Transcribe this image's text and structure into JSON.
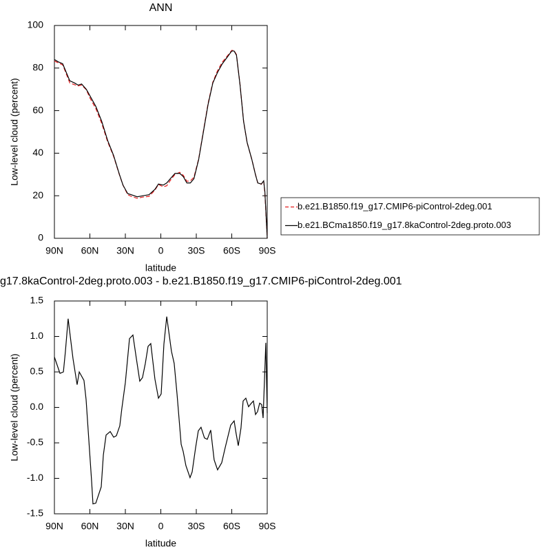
{
  "chart_data": [
    {
      "type": "line",
      "title": "ANN",
      "xlabel": "latitude",
      "ylabel": "Low-level cloud (percent)",
      "x": [
        90,
        87,
        83,
        80,
        77,
        73,
        70,
        67,
        63,
        60,
        55,
        50,
        45,
        40,
        35,
        32,
        28,
        25,
        20,
        15,
        10,
        5,
        2,
        -2,
        -5,
        -8,
        -12,
        -16,
        -19,
        -22,
        -25,
        -28,
        -32,
        -36,
        -40,
        -44,
        -48,
        -52,
        -56,
        -60,
        -62,
        -64,
        -67,
        -70,
        -73,
        -77,
        -80,
        -82,
        -85,
        -87,
        -88,
        -90
      ],
      "series": [
        {
          "name": "b.e21.B1850.f19_g17.CMIP6-piControl-2deg.001",
          "color": "#e41a1c",
          "dashed": true,
          "values": [
            83.3,
            82.5,
            81.5,
            77.3,
            73,
            72.2,
            71.6,
            72,
            69.8,
            66,
            61,
            54,
            45.4,
            38.6,
            29.8,
            25,
            20.5,
            19.7,
            18.8,
            19.4,
            19.7,
            22.6,
            25.3,
            24.2,
            24.7,
            27.2,
            30,
            31,
            29.6,
            26.8,
            27,
            28.7,
            37.3,
            50.4,
            63.5,
            73.4,
            78.8,
            82.8,
            85.5,
            88.3,
            88.2,
            86.3,
            72.3,
            54.9,
            44.9,
            37,
            30.1,
            26,
            25.4,
            27.1,
            21,
            0
          ]
        },
        {
          "name": "b.e21.BCma1850.f19_g17.8kaControl-2deg.proto.003",
          "color": "#000000",
          "dashed": false,
          "values": [
            84,
            83,
            82,
            78,
            74,
            73,
            72,
            72.5,
            70,
            67,
            62,
            55,
            46,
            39,
            30,
            25,
            21,
            20.5,
            19.5,
            20,
            20.5,
            23,
            25.5,
            25,
            26,
            28,
            30.5,
            30.5,
            29,
            26,
            26,
            28,
            37,
            50,
            63,
            73,
            78,
            82,
            85,
            88,
            88,
            86,
            72,
            55,
            45,
            37,
            30,
            26,
            25.5,
            27,
            22,
            0
          ]
        }
      ],
      "xlim": [
        90,
        -90
      ],
      "xticks": [
        {
          "value": 90,
          "label": "90N"
        },
        {
          "value": 60,
          "label": "60N"
        },
        {
          "value": 30,
          "label": "30N"
        },
        0,
        {
          "value": -30,
          "label": "30S"
        },
        {
          "value": -60,
          "label": "60S"
        },
        {
          "value": -90,
          "label": "90S"
        }
      ],
      "ylim": [
        0,
        100
      ],
      "yticks": [
        0,
        20,
        40,
        60,
        80,
        100
      ],
      "legend": "right"
    },
    {
      "type": "line",
      "title": "g17.8kaControl-2deg.proto.003 - b.e21.B1850.f19_g17.CMIP6-piControl-2deg.001",
      "xlabel": "latitude",
      "ylabel": "Low-level cloud (percent)",
      "x": [
        90,
        85.3,
        82.4,
        80.7,
        78.4,
        74.3,
        70.8,
        69,
        65,
        63.2,
        58.5,
        57.4,
        55,
        50.4,
        48.6,
        46.3,
        42.8,
        39.9,
        37.6,
        34.7,
        33,
        30,
        26.5,
        23.6,
        20.7,
        17.8,
        15.5,
        13.1,
        10.8,
        8.5,
        5,
        2,
        -0.3,
        -2.6,
        -5,
        -9,
        -11.3,
        -13.7,
        -17.2,
        -18.9,
        -21.2,
        -24.7,
        -26.5,
        -29.4,
        -31.7,
        -34,
        -36.9,
        -39.3,
        -42.2,
        -45.1,
        -48,
        -51.5,
        -54.4,
        -59.1,
        -62,
        -63.7,
        -65.5,
        -67.8,
        -69.6,
        -71.9,
        -74.2,
        -76.6,
        -78.3,
        -80.1,
        -81.8,
        -83.6,
        -85.3,
        -86.5,
        -88.8,
        -90
      ],
      "series": [
        {
          "color": "#000000",
          "dashed": false,
          "values": [
            0.71,
            0.48,
            0.5,
            0.79,
            1.25,
            0.69,
            0.32,
            0.5,
            0.38,
            0.11,
            -1.05,
            -1.36,
            -1.35,
            -1.12,
            -0.67,
            -0.39,
            -0.34,
            -0.42,
            -0.4,
            -0.26,
            -0.02,
            0.35,
            0.97,
            1.02,
            0.69,
            0.37,
            0.42,
            0.62,
            0.86,
            0.9,
            0.4,
            0.13,
            0.19,
            0.89,
            1.28,
            0.79,
            0.62,
            0.19,
            -0.52,
            -0.62,
            -0.82,
            -0.99,
            -0.91,
            -0.57,
            -0.33,
            -0.28,
            -0.43,
            -0.45,
            -0.32,
            -0.74,
            -0.88,
            -0.78,
            -0.57,
            -0.25,
            -0.19,
            -0.37,
            -0.54,
            -0.29,
            0.09,
            0.13,
            0.01,
            0.06,
            0.09,
            -0.1,
            -0.06,
            0.06,
            0.04,
            -0.15,
            0.91,
            -0.08
          ]
        }
      ],
      "xlim": [
        90,
        -90
      ],
      "xticks": [
        {
          "value": 90,
          "label": "90N"
        },
        {
          "value": 60,
          "label": "60N"
        },
        {
          "value": 30,
          "label": "30N"
        },
        0,
        {
          "value": -30,
          "label": "30S"
        },
        {
          "value": -60,
          "label": "60S"
        },
        {
          "value": -90,
          "label": "90S"
        }
      ],
      "ylim": [
        -1.5,
        1.5
      ],
      "yticks": [
        -1.5,
        {
          "value": -1,
          "label": "-1.0"
        },
        -0.5,
        {
          "value": 0,
          "label": "0.0"
        },
        0.5,
        {
          "value": 1,
          "label": "1.0"
        },
        1.5
      ]
    }
  ]
}
